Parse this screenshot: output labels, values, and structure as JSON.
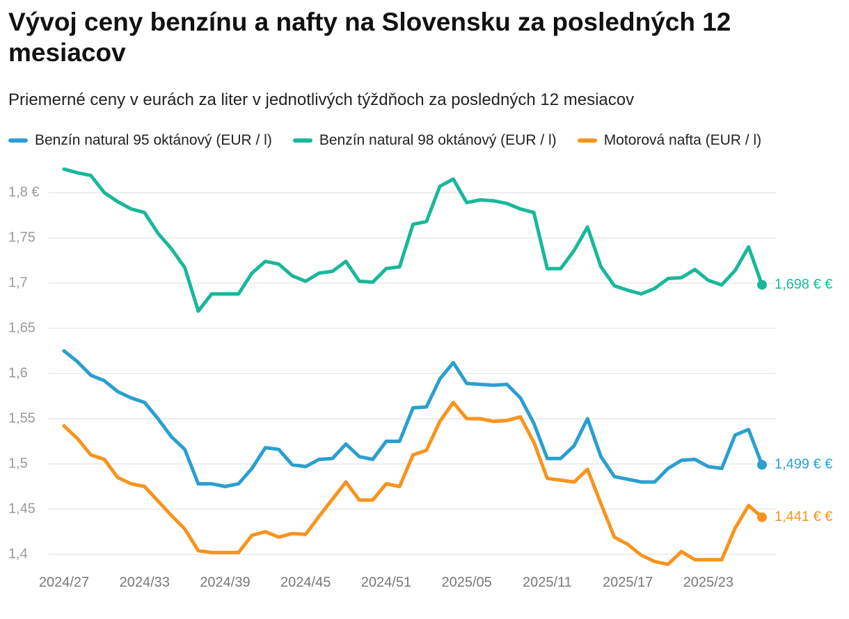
{
  "chart_data": {
    "type": "line",
    "title": "Vývoj ceny benzínu a nafty na Slovensku za posledných 12 mesiacov",
    "subtitle": "Priemerné ceny v eurách za liter v jednotlivých týždňoch za posledných 12 mesiacov",
    "categories": [
      "2024/27",
      null,
      null,
      null,
      null,
      null,
      "2024/33",
      null,
      null,
      null,
      null,
      null,
      "2024/39",
      null,
      null,
      null,
      null,
      null,
      "2024/45",
      null,
      null,
      null,
      null,
      null,
      "2024/51",
      null,
      null,
      null,
      null,
      null,
      "2025/05",
      null,
      null,
      null,
      null,
      null,
      "2025/11",
      null,
      null,
      null,
      null,
      null,
      "2025/17",
      null,
      null,
      null,
      null,
      null,
      "2025/23",
      null,
      null,
      null,
      null
    ],
    "ylim": [
      1.38,
      1.83
    ],
    "yticks": [
      {
        "value": 1.4,
        "label": "1,4"
      },
      {
        "value": 1.45,
        "label": "1,45"
      },
      {
        "value": 1.5,
        "label": "1,5"
      },
      {
        "value": 1.55,
        "label": "1,55"
      },
      {
        "value": 1.6,
        "label": "1,6"
      },
      {
        "value": 1.65,
        "label": "1,65"
      },
      {
        "value": 1.7,
        "label": "1,7"
      },
      {
        "value": 1.75,
        "label": "1,75"
      },
      {
        "value": 1.8,
        "label": "1,8 €"
      }
    ],
    "grid": true,
    "series": [
      {
        "name": "Benzín natural 95 oktánový (EUR / l)",
        "color": "#2a9fd0",
        "values": [
          1.625,
          1.613,
          1.598,
          1.592,
          1.58,
          1.573,
          1.568,
          1.55,
          1.53,
          1.516,
          1.478,
          1.478,
          1.475,
          1.478,
          1.495,
          1.518,
          1.516,
          1.499,
          1.497,
          1.505,
          1.506,
          1.522,
          1.508,
          1.505,
          1.525,
          1.525,
          1.562,
          1.563,
          1.594,
          1.612,
          1.589,
          1.588,
          1.587,
          1.588,
          1.573,
          1.545,
          1.506,
          1.506,
          1.52,
          1.55,
          1.508,
          1.486,
          1.483,
          1.48,
          1.48,
          1.495,
          1.504,
          1.505,
          1.497,
          1.495,
          1.532,
          1.538,
          1.499
        ],
        "value_labels": [
          null,
          null,
          null,
          null,
          null,
          null,
          null,
          null,
          null,
          null,
          null,
          null,
          null,
          null,
          null,
          null,
          null,
          null,
          null,
          null,
          null,
          null,
          null,
          null,
          null,
          null,
          null,
          null,
          null,
          null,
          null,
          null,
          null,
          null,
          null,
          null,
          null,
          null,
          null,
          null,
          null,
          null,
          null,
          null,
          null,
          null,
          null,
          null,
          null,
          null,
          null,
          null,
          "1,499 € €"
        ]
      },
      {
        "name": "Benzín natural 98 oktánový (EUR / l)",
        "color": "#19b89a",
        "values": [
          1.826,
          1.822,
          1.819,
          1.8,
          1.79,
          1.782,
          1.778,
          1.755,
          1.738,
          1.717,
          1.669,
          1.688,
          1.688,
          1.688,
          1.711,
          1.724,
          1.721,
          1.708,
          1.702,
          1.711,
          1.713,
          1.724,
          1.702,
          1.701,
          1.716,
          1.718,
          1.765,
          1.768,
          1.807,
          1.815,
          1.789,
          1.792,
          1.791,
          1.788,
          1.782,
          1.778,
          1.716,
          1.716,
          1.736,
          1.762,
          1.718,
          1.697,
          1.692,
          1.688,
          1.694,
          1.705,
          1.706,
          1.715,
          1.703,
          1.698,
          1.714,
          1.74,
          1.698
        ],
        "value_labels": [
          null,
          null,
          null,
          null,
          null,
          null,
          null,
          null,
          null,
          null,
          null,
          null,
          null,
          null,
          null,
          null,
          null,
          null,
          null,
          null,
          null,
          null,
          null,
          null,
          null,
          null,
          null,
          null,
          null,
          null,
          null,
          null,
          null,
          null,
          null,
          null,
          null,
          null,
          null,
          null,
          null,
          null,
          null,
          null,
          null,
          null,
          null,
          null,
          null,
          null,
          null,
          null,
          "1,698 € €"
        ]
      },
      {
        "name": "Motorová nafta (EUR / l)",
        "color": "#f7941d",
        "values": [
          1.542,
          1.528,
          1.51,
          1.505,
          1.485,
          1.478,
          1.475,
          1.459,
          1.443,
          1.428,
          1.404,
          1.402,
          1.402,
          1.402,
          1.421,
          1.425,
          1.419,
          1.423,
          1.422,
          1.442,
          1.461,
          1.48,
          1.46,
          1.46,
          1.478,
          1.475,
          1.51,
          1.515,
          1.547,
          1.568,
          1.55,
          1.55,
          1.547,
          1.548,
          1.552,
          1.524,
          1.484,
          1.482,
          1.48,
          1.494,
          1.456,
          1.419,
          1.411,
          1.399,
          1.392,
          1.389,
          1.403,
          1.394,
          1.394,
          1.394,
          1.429,
          1.454,
          1.441
        ],
        "value_labels": [
          null,
          null,
          null,
          null,
          null,
          null,
          null,
          null,
          null,
          null,
          null,
          null,
          null,
          null,
          null,
          null,
          null,
          null,
          null,
          null,
          null,
          null,
          null,
          null,
          null,
          null,
          null,
          null,
          null,
          null,
          null,
          null,
          null,
          null,
          null,
          null,
          null,
          null,
          null,
          null,
          null,
          null,
          null,
          null,
          null,
          null,
          null,
          null,
          null,
          null,
          null,
          null,
          "1,441 € €"
        ]
      }
    ]
  }
}
